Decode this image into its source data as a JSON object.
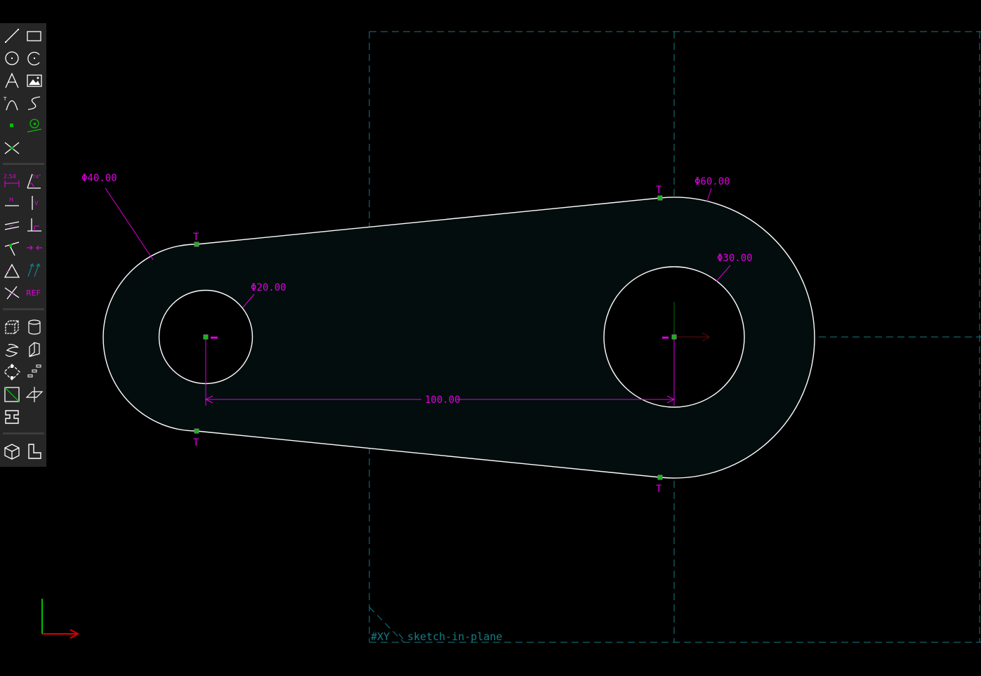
{
  "toolbar": {
    "groups": [
      [
        "line-segment",
        "rectangle",
        "circle",
        "arc",
        "text",
        "image",
        "tangent-arc",
        "bezier-cubic",
        "datum-point",
        "workplane",
        "split-curves"
      ],
      [
        "distance-constraint",
        "angle-constraint",
        "horizontal-constraint",
        "vertical-constraint",
        "parallel-constraint",
        "perpendicular-constraint",
        "point-on-line",
        "symmetric-constraint",
        "equal-constraint",
        "other-supplementary",
        "tangent-constraint",
        "reference-toggle"
      ],
      [
        "extrude",
        "lathe",
        "helix",
        "revolve",
        "step-rotating",
        "step-translating",
        "new-workplane-point",
        "new-workplane-normal",
        "assemble"
      ],
      [
        "iso-view",
        "sketch-2d-view"
      ]
    ],
    "labels": {
      "distance-constraint": "2.54",
      "angle-constraint": "74°",
      "horizontal-constraint": "H",
      "vertical-constraint": "V",
      "reference-toggle": "REF"
    }
  },
  "sketch": {
    "dimensions": {
      "dia_left_outer": "Φ40.00",
      "dia_left_hole": "Φ20.00",
      "dia_right_outer": "Φ60.00",
      "dia_right_hole": "Φ30.00",
      "center_distance": "100.00"
    },
    "tangent_marker": "T",
    "workplane_label": "#XY",
    "workplane_group": "sketch-in-plane"
  },
  "colors": {
    "background": "#000000",
    "toolbar": "#262626",
    "toolbar_icon": "#ffffff",
    "constraint": "#e000e0",
    "point": "#00c000",
    "workplane": "#137d85",
    "region_fill": "#030d0d",
    "axis_x": "#e00000",
    "axis_y": "#00c000"
  }
}
